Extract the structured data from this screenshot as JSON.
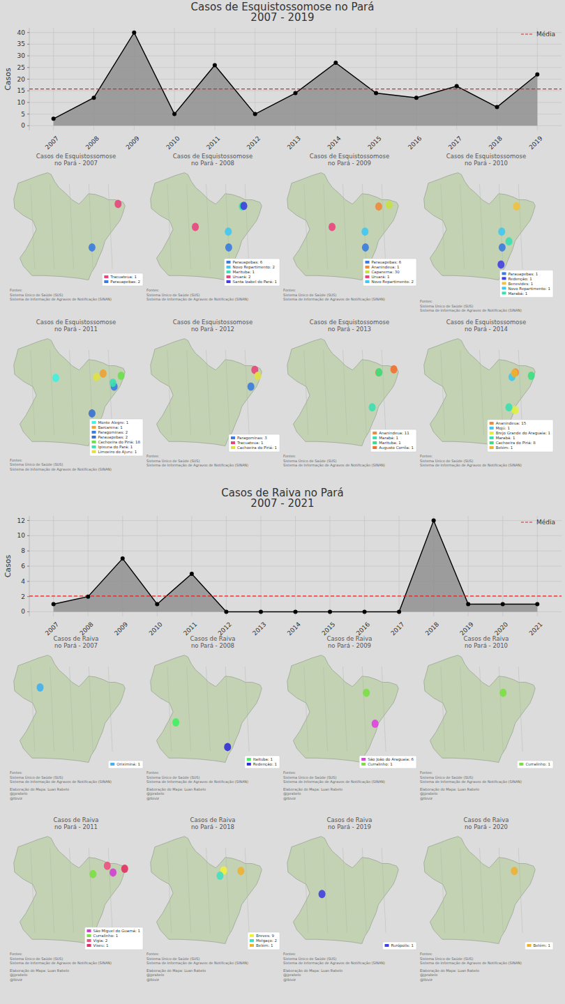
{
  "chart_data": [
    {
      "type": "area",
      "title": "Casos de Esquistossomose no Pará",
      "subtitle": "2007 - 2019",
      "y_label": "Casos",
      "categories": [
        "2007",
        "2008",
        "2009",
        "2010",
        "2011",
        "2012",
        "2013",
        "2014",
        "2015",
        "2016",
        "2017",
        "2018",
        "2019"
      ],
      "values": [
        3,
        12,
        40,
        5,
        26,
        5,
        14,
        27,
        14,
        12,
        17,
        8,
        22
      ],
      "color": "#000000",
      "marker": "o",
      "ylim": [
        -2,
        42
      ],
      "yticks": [
        0,
        5,
        10,
        15,
        20,
        25,
        30,
        35,
        40
      ],
      "grid": true,
      "legend": "upper right",
      "mean_line": {
        "name": "Média",
        "value": 15.77,
        "color": "#d62728",
        "line_style": "dashed"
      }
    },
    {
      "type": "area",
      "title": "Casos de Raiva no Pará",
      "subtitle": "2007 - 2021",
      "y_label": "Casos",
      "categories": [
        "2007",
        "2008",
        "2009",
        "2010",
        "2011",
        "2012",
        "2013",
        "2014",
        "2015",
        "2016",
        "2017",
        "2018",
        "2019",
        "2020",
        "2021"
      ],
      "values": [
        1,
        2,
        7,
        1,
        5,
        0,
        0,
        0,
        0,
        0,
        0,
        12,
        1,
        1,
        1
      ],
      "color": "#000000",
      "marker": "o",
      "ylim": [
        -0.6,
        12.6
      ],
      "yticks": [
        0,
        2,
        4,
        6,
        8,
        10,
        12
      ],
      "grid": true,
      "legend": "upper right",
      "mean_line": {
        "name": "Média",
        "value": 2.07,
        "color": "#d62728",
        "line_style": "dashed"
      }
    }
  ],
  "maps": [
    {
      "sources": [
        "Fontes:",
        "Sistema Único de Saúde (SUS)",
        "Sistema de Informação de Agravos de Notificação (SINAN)"
      ],
      "panels": [
        {
          "title_lines": [
            "Casos de Esquistossomose",
            "no Pará - 2007"
          ],
          "entries": [
            {
              "name": "Tracuateua",
              "value": 1,
              "color": "#e8457c",
              "lon": -46.9,
              "lat": -1.08
            },
            {
              "name": "Parauapebas",
              "value": 2,
              "color": "#3a7be0",
              "lon": -49.9,
              "lat": -6.07
            }
          ]
        },
        {
          "title_lines": [
            "Casos de Esquistossomose",
            "no Pará - 2008"
          ],
          "entries": [
            {
              "name": "Parauapebas",
              "value": 6,
              "color": "#3a7be0",
              "lon": -49.9,
              "lat": -6.07
            },
            {
              "name": "Novo Repartimento",
              "value": 2,
              "color": "#40c8f0",
              "lon": -49.95,
              "lat": -4.25
            },
            {
              "name": "Marituba",
              "value": 1,
              "color": "#3ae0b0",
              "lon": -48.34,
              "lat": -1.36
            },
            {
              "name": "Uruará",
              "value": 2,
              "color": "#e8457c",
              "lon": -53.74,
              "lat": -3.72
            },
            {
              "name": "Santa Izabel do Pará",
              "value": 1,
              "color": "#4040e0",
              "lon": -48.16,
              "lat": -1.3
            }
          ]
        },
        {
          "title_lines": [
            "Casos de Esquistossomose",
            "no Pará - 2009"
          ],
          "entries": [
            {
              "name": "Parauapebas",
              "value": 6,
              "color": "#3a7be0",
              "lon": -49.9,
              "lat": -6.07
            },
            {
              "name": "Ananindeua",
              "value": 1,
              "color": "#f08a3a",
              "lon": -48.37,
              "lat": -1.37
            },
            {
              "name": "Capanema",
              "value": 30,
              "color": "#c8e040",
              "lon": -47.18,
              "lat": -1.19
            },
            {
              "name": "Uruará",
              "value": 1,
              "color": "#e8457c",
              "lon": -53.74,
              "lat": -3.72
            },
            {
              "name": "Novo Repartimento",
              "value": 2,
              "color": "#40c8f0",
              "lon": -49.95,
              "lat": -4.25
            }
          ]
        },
        {
          "title_lines": [
            "Casos de Esquistossomose",
            "no Pará - 2010"
          ],
          "entries": [
            {
              "name": "Parauapebas",
              "value": 1,
              "color": "#3a7be0",
              "lon": -49.9,
              "lat": -6.07
            },
            {
              "name": "Redenção",
              "value": 1,
              "color": "#4040e0",
              "lon": -50.03,
              "lat": -8.03
            },
            {
              "name": "Benevides",
              "value": 1,
              "color": "#f0c040",
              "lon": -48.25,
              "lat": -1.36
            },
            {
              "name": "Novo Repartimento",
              "value": 1,
              "color": "#40c8f0",
              "lon": -49.95,
              "lat": -4.25
            },
            {
              "name": "Marabá",
              "value": 1,
              "color": "#3ae0b0",
              "lon": -49.12,
              "lat": -5.37
            }
          ]
        },
        {
          "title_lines": [
            "Casos de Esquistossomose",
            "no Pará - 2011"
          ],
          "entries": [
            {
              "name": "Monte Alegre",
              "value": 1,
              "color": "#40f0e0",
              "lon": -54.07,
              "lat": -2.0
            },
            {
              "name": "Barcarena",
              "value": 1,
              "color": "#f0a030",
              "lon": -48.62,
              "lat": -1.5
            },
            {
              "name": "Paragominas",
              "value": 2,
              "color": "#3a7be0",
              "lon": -47.35,
              "lat": -3.0
            },
            {
              "name": "Parauapebas",
              "value": 2,
              "color": "#3a6fd0",
              "lon": -49.9,
              "lat": -6.07
            },
            {
              "name": "Cachoeira do Piriá",
              "value": 18,
              "color": "#6ae04a",
              "lon": -46.55,
              "lat": -1.76
            },
            {
              "name": "Ipixuna do Pará",
              "value": 1,
              "color": "#3ae0b0",
              "lon": -47.5,
              "lat": -2.56
            },
            {
              "name": "Limoeiro do Ajuru",
              "value": 1,
              "color": "#e0e040",
              "lon": -49.39,
              "lat": -1.9
            }
          ]
        },
        {
          "title_lines": [
            "Casos de Esquistossomose",
            "no Pará - 2012"
          ],
          "entries": [
            {
              "name": "Paragominas",
              "value": 3,
              "color": "#3a7be0",
              "lon": -47.35,
              "lat": -3.0
            },
            {
              "name": "Tracuateua",
              "value": 1,
              "color": "#e8457c",
              "lon": -46.9,
              "lat": -1.08
            },
            {
              "name": "Cachoeira do Piriá",
              "value": 1,
              "color": "#e0e040",
              "lon": -46.55,
              "lat": -1.76
            }
          ]
        },
        {
          "title_lines": [
            "Casos de Esquistossomose",
            "no Pará - 2013"
          ],
          "entries": [
            {
              "name": "Ananindeua",
              "value": 11,
              "color": "#f08a3a",
              "lon": -48.37,
              "lat": -1.37
            },
            {
              "name": "Marabá",
              "value": 1,
              "color": "#3ae0b0",
              "lon": -49.12,
              "lat": -5.37
            },
            {
              "name": "Marituba",
              "value": 1,
              "color": "#3ae080",
              "lon": -48.34,
              "lat": -1.36
            },
            {
              "name": "Augusto Corrêa",
              "value": 1,
              "color": "#f07030",
              "lon": -46.63,
              "lat": -1.02
            }
          ]
        },
        {
          "title_lines": [
            "Casos de Esquistossomose",
            "no Pará - 2014"
          ],
          "entries": [
            {
              "name": "Ananindeua",
              "value": 15,
              "color": "#f08a3a",
              "lon": -48.37,
              "lat": -1.37
            },
            {
              "name": "Mojú",
              "value": 1,
              "color": "#40c8f0",
              "lon": -48.77,
              "lat": -1.89
            },
            {
              "name": "Brejo Grande do Araguaia",
              "value": 1,
              "color": "#e0f040",
              "lon": -48.41,
              "lat": -5.7
            },
            {
              "name": "Marabá",
              "value": 1,
              "color": "#3ae0b0",
              "lon": -49.12,
              "lat": -5.37
            },
            {
              "name": "Cachoeira do Piriá",
              "value": 8,
              "color": "#3ae080",
              "lon": -46.55,
              "lat": -1.76
            },
            {
              "name": "Belém",
              "value": 1,
              "color": "#f0b030",
              "lon": -48.5,
              "lat": -1.45
            }
          ]
        }
      ]
    },
    {
      "sources": [
        "Fontes:",
        "Sistema Único de Saúde (SUS)",
        "Sistema de Informação de Agravos de Notificação (SINAN)"
      ],
      "credits": [
        "Elaboração do Mapa: Luan Rabelo",
        "@jprabelo",
        "@lbiviz"
      ],
      "panels": [
        {
          "title_lines": [
            "Casos de Raiva",
            "no Pará - 2007"
          ],
          "entries": [
            {
              "name": "Oriximiná",
              "value": 1,
              "color": "#40b0f0",
              "lon": -55.87,
              "lat": -1.2
            }
          ]
        },
        {
          "title_lines": [
            "Casos de Raiva",
            "no Pará - 2008"
          ],
          "entries": [
            {
              "name": "Itaituba",
              "value": 1,
              "color": "#40f060",
              "lon": -55.98,
              "lat": -5.2
            },
            {
              "name": "Redenção",
              "value": 1,
              "color": "#3030d0",
              "lon": -50.03,
              "lat": -8.03
            }
          ]
        },
        {
          "title_lines": [
            "Casos de Raiva",
            "no Pará - 2009"
          ],
          "entries": [
            {
              "name": "São João do Araguaia",
              "value": 6,
              "color": "#e040e0",
              "lon": -48.79,
              "lat": -5.36
            },
            {
              "name": "Curralinho",
              "value": 1,
              "color": "#7ae040",
              "lon": -49.79,
              "lat": -1.81
            }
          ]
        },
        {
          "title_lines": [
            "Casos de Raiva",
            "no Pará - 2010"
          ],
          "entries": [
            {
              "name": "Curralinho",
              "value": 1,
              "color": "#7ae040",
              "lon": -49.79,
              "lat": -1.81
            }
          ]
        },
        {
          "title_lines": [
            "Casos de Raiva",
            "no Pará - 2011"
          ],
          "entries": [
            {
              "name": "São Miguel do Guamá",
              "value": 1,
              "color": "#d040d0",
              "lon": -47.48,
              "lat": -1.63
            },
            {
              "name": "Curralinho",
              "value": 1,
              "color": "#7ae040",
              "lon": -49.79,
              "lat": -1.81
            },
            {
              "name": "Vigia",
              "value": 2,
              "color": "#f05080",
              "lon": -48.14,
              "lat": -0.86
            },
            {
              "name": "Viseu",
              "value": 1,
              "color": "#e03060",
              "lon": -46.14,
              "lat": -1.2
            }
          ]
        },
        {
          "title_lines": [
            "Casos de Raiva",
            "no Pará - 2018"
          ],
          "entries": [
            {
              "name": "Breves",
              "value": 9,
              "color": "#f0f040",
              "lon": -50.48,
              "lat": -1.4
            },
            {
              "name": "Melgaço",
              "value": 2,
              "color": "#40e0c0",
              "lon": -50.9,
              "lat": -2.0
            },
            {
              "name": "Belém",
              "value": 1,
              "color": "#f0b030",
              "lon": -48.5,
              "lat": -1.45
            }
          ]
        },
        {
          "title_lines": [
            "Casos de Raiva",
            "no Pará - 2019"
          ],
          "entries": [
            {
              "name": "Rurópolis",
              "value": 1,
              "color": "#4040e0",
              "lon": -54.9,
              "lat": -4.1
            }
          ]
        },
        {
          "title_lines": [
            "Casos de Raiva",
            "no Pará - 2020"
          ],
          "entries": [
            {
              "name": "Belém",
              "value": 1,
              "color": "#f0b030",
              "lon": -48.5,
              "lat": -1.45
            }
          ]
        }
      ]
    }
  ]
}
